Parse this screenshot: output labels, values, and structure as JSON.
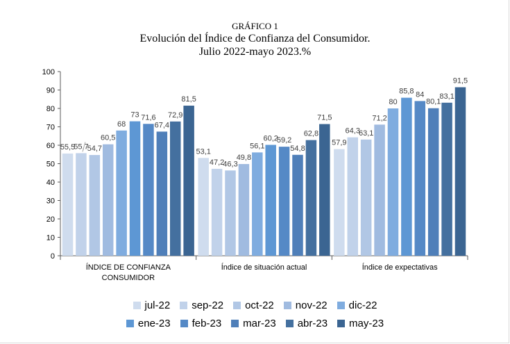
{
  "header": {
    "line1": "GRÁFICO 1",
    "line2": "Evolución  del Índice de Confianza del Consumidor.",
    "line3": "Julio 2022-mayo 2023.%"
  },
  "chart_data": {
    "type": "bar",
    "title": "GRÁFICO 1 Evolución del Índice de Confianza del Consumidor. Julio 2022-mayo 2023.%",
    "xlabel": "",
    "ylabel": "",
    "ylim": [
      0,
      100
    ],
    "yticks": [
      0,
      10,
      20,
      30,
      40,
      50,
      60,
      70,
      80,
      90,
      100
    ],
    "grid": false,
    "legend_position": "bottom",
    "categories": [
      [
        "ÍNDICE DE CONFIANZA",
        "CONSUMIDOR"
      ],
      [
        "Índice de situación actual"
      ],
      [
        "Índice de expectativas"
      ]
    ],
    "series": [
      {
        "name": "jul-22",
        "color": "#cfdcee",
        "values": [
          55.5,
          53.1,
          57.9
        ],
        "labels": [
          "55,5",
          "53,1",
          "57,9"
        ]
      },
      {
        "name": "sep-22",
        "color": "#c1d2ea",
        "values": [
          55.7,
          47.2,
          64.3
        ],
        "labels": [
          "55,7",
          "47,2",
          "64,3"
        ]
      },
      {
        "name": "oct-22",
        "color": "#b1c7e5",
        "values": [
          54.7,
          46.3,
          63.1
        ],
        "labels": [
          "54,7",
          "46,3",
          "63,1"
        ]
      },
      {
        "name": "nov-22",
        "color": "#a0bbe0",
        "values": [
          60.5,
          49.8,
          71.2
        ],
        "labels": [
          "60,5",
          "49,8",
          "71,2"
        ]
      },
      {
        "name": "dic-22",
        "color": "#7facdf",
        "values": [
          68,
          56.1,
          80
        ],
        "labels": [
          "68",
          "56,1",
          "80"
        ]
      },
      {
        "name": "ene-23",
        "color": "#5d97d4",
        "values": [
          73,
          60.2,
          85.8
        ],
        "labels": [
          "73",
          "60,2",
          "85,8"
        ]
      },
      {
        "name": "feb-23",
        "color": "#5589c6",
        "values": [
          71.6,
          59.2,
          84
        ],
        "labels": [
          "71,6",
          "59,2",
          "84"
        ]
      },
      {
        "name": "mar-23",
        "color": "#4f7fb9",
        "values": [
          67.4,
          54.8,
          80.1
        ],
        "labels": [
          "67,4",
          "54,8",
          "80,1"
        ]
      },
      {
        "name": "abr-23",
        "color": "#44709f",
        "values": [
          72.9,
          62.8,
          83.1
        ],
        "labels": [
          "72,9",
          "62,8",
          "83,1"
        ]
      },
      {
        "name": "may-23",
        "color": "#3b6592",
        "values": [
          81.5,
          71.5,
          91.5
        ],
        "labels": [
          "81,5",
          "71,5",
          "91,5"
        ]
      }
    ]
  }
}
